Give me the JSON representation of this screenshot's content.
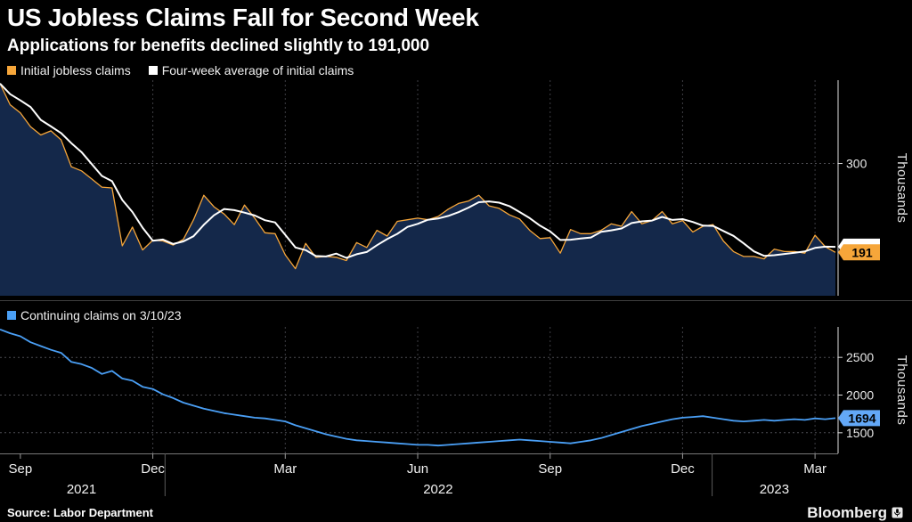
{
  "header": {
    "title": "US Jobless Claims Fall for Second Week",
    "subtitle": "Applications for benefits declined slightly to 191,000"
  },
  "footer": {
    "source": "Source: Labor Department",
    "brand": "Bloomberg"
  },
  "x_axis": {
    "n_points": 83,
    "tick_indices": [
      2,
      15,
      28,
      41,
      54,
      67,
      80
    ],
    "tick_labels": [
      "Sep",
      "Dec",
      "Mar",
      "Jun",
      "Sep",
      "Dec",
      "Mar"
    ],
    "grid_indices": [
      15,
      28,
      41,
      54,
      67,
      80
    ],
    "year_separator_indices": [
      16.2,
      69.9
    ],
    "year_labels": [
      {
        "label": "2021",
        "index": 8
      },
      {
        "label": "2022",
        "index": 43
      },
      {
        "label": "2023",
        "index": 76
      }
    ]
  },
  "chart_data": [
    {
      "type": "area",
      "name": "initial-jobless-claims",
      "ylabel": "Thousands",
      "ylim": [
        140,
        400
      ],
      "y_ticks": [
        {
          "value": 300,
          "label": "300"
        }
      ],
      "legend": [
        {
          "label": "Initial jobless claims",
          "color": "#f6a63a"
        },
        {
          "label": "Four-week average of initial claims",
          "color": "#ffffff"
        }
      ],
      "series": [
        {
          "key": "initial-claims-line",
          "name": "Initial jobless claims",
          "color": "#f6a63a",
          "fill": "#14284a",
          "width": 1.3,
          "values": [
            398,
            372,
            362,
            345,
            335,
            340,
            329,
            296,
            291,
            281,
            271,
            270,
            199,
            222,
            194,
            206,
            205,
            200,
            207,
            231,
            261,
            247,
            238,
            225,
            249,
            233,
            215,
            214,
            188,
            171,
            202,
            185,
            186,
            185,
            181,
            203,
            197,
            218,
            211,
            229,
            231,
            233,
            231,
            235,
            244,
            251,
            254,
            261,
            248,
            245,
            237,
            232,
            218,
            208,
            209,
            190,
            219,
            214,
            214,
            218,
            226,
            223,
            241,
            226,
            230,
            241,
            226,
            230,
            216,
            223,
            225,
            205,
            192,
            186,
            186,
            183,
            195,
            192,
            192,
            190,
            212,
            198,
            191
          ]
        },
        {
          "key": "four-week-average-line",
          "name": "Four-week average of initial claims",
          "color": "#ffffff",
          "width": 2,
          "derived_from": 0,
          "moving_average": 4
        }
      ],
      "end_badges": [
        {
          "key": "four-week-average-badge",
          "value": 198,
          "label": "",
          "color": "#ffffff",
          "text_color": "#000000"
        },
        {
          "key": "initial-claims-badge",
          "value": 191,
          "label": "191",
          "color": "#f6a63a",
          "text_color": "#000000"
        }
      ]
    },
    {
      "type": "line",
      "name": "continuing-claims",
      "ylabel": "Thousands",
      "ylim": [
        1250,
        2880
      ],
      "y_ticks": [
        {
          "value": 1500,
          "label": "1500"
        },
        {
          "value": 2000,
          "label": "2000"
        },
        {
          "value": 2500,
          "label": "2500"
        }
      ],
      "legend": [
        {
          "label": "Continuing claims on 3/10/23",
          "color": "#4a9ff5"
        }
      ],
      "series": [
        {
          "key": "continuing-claims-line",
          "name": "Continuing claims",
          "color": "#4a9ff5",
          "width": 1.8,
          "values": [
            2870,
            2820,
            2780,
            2700,
            2650,
            2600,
            2560,
            2440,
            2410,
            2360,
            2280,
            2320,
            2220,
            2190,
            2110,
            2080,
            2010,
            1960,
            1900,
            1860,
            1820,
            1790,
            1760,
            1740,
            1720,
            1700,
            1690,
            1670,
            1650,
            1600,
            1560,
            1520,
            1480,
            1450,
            1420,
            1400,
            1390,
            1380,
            1370,
            1360,
            1350,
            1340,
            1340,
            1330,
            1340,
            1350,
            1360,
            1370,
            1380,
            1390,
            1400,
            1410,
            1400,
            1390,
            1380,
            1370,
            1360,
            1380,
            1400,
            1430,
            1470,
            1510,
            1550,
            1590,
            1620,
            1650,
            1680,
            1700,
            1710,
            1720,
            1700,
            1680,
            1660,
            1650,
            1660,
            1670,
            1660,
            1670,
            1680,
            1670,
            1690,
            1680,
            1694
          ]
        }
      ],
      "end_badges": [
        {
          "key": "continuing-claims-badge",
          "value": 1694,
          "label": "1694",
          "color": "#63a8f7",
          "text_color": "#000000"
        }
      ]
    }
  ]
}
